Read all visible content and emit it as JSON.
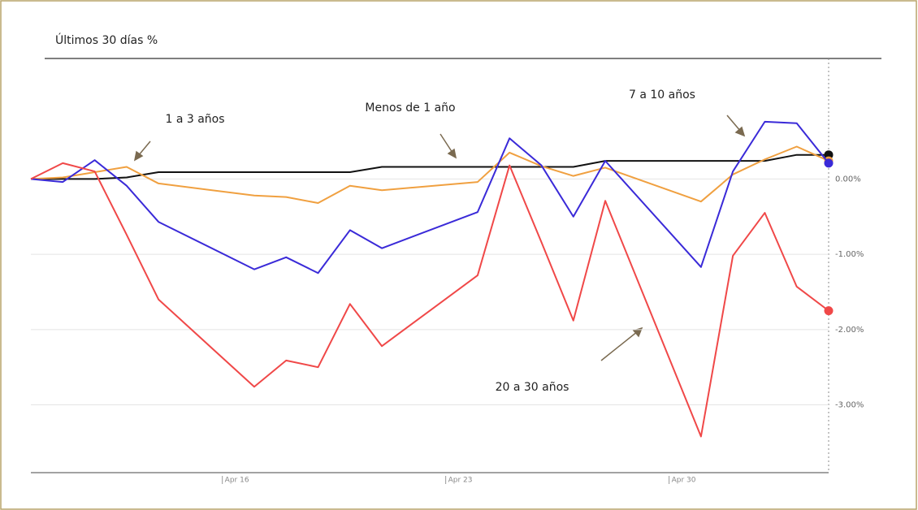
{
  "chart_data": {
    "type": "line",
    "title": "Últimos 30 días %",
    "x": [
      0,
      1,
      2,
      3,
      4,
      7,
      8,
      9,
      10,
      11,
      14,
      15,
      16,
      17,
      18,
      21,
      22,
      23,
      24,
      25
    ],
    "xlim": [
      0,
      25
    ],
    "xticks": [
      {
        "value": 6,
        "label": "Apr 16"
      },
      {
        "value": 13,
        "label": "Apr 23"
      },
      {
        "value": 20,
        "label": "Apr 30"
      }
    ],
    "ylim": [
      -3.9,
      1.6
    ],
    "yticks": [
      {
        "value": 0,
        "label": "0.00%"
      },
      {
        "value": -1,
        "label": "-1.00%"
      },
      {
        "value": -2,
        "label": "-2.00%"
      },
      {
        "value": -3,
        "label": "-3.00%"
      }
    ],
    "grid": true,
    "series": [
      {
        "name": "Menos de 1 año",
        "color": "#111111",
        "values": [
          0,
          0,
          0,
          0.02,
          0.09,
          0.09,
          0.09,
          0.09,
          0.09,
          0.16,
          0.16,
          0.16,
          0.16,
          0.16,
          0.24,
          0.24,
          0.24,
          0.24,
          0.32,
          0.32
        ]
      },
      {
        "name": "1 a 3 años",
        "color": "#f0a040",
        "values": [
          0,
          0.02,
          0.09,
          0.16,
          -0.06,
          -0.22,
          -0.24,
          -0.32,
          -0.09,
          -0.15,
          -0.04,
          0.35,
          0.17,
          0.04,
          0.15,
          -0.3,
          0.06,
          0.26,
          0.43,
          0.24
        ]
      },
      {
        "name": "7 a 10 años",
        "color": "#3a2ad8",
        "values": [
          0,
          -0.04,
          0.25,
          -0.09,
          -0.57,
          -1.2,
          -1.04,
          -1.25,
          -0.68,
          -0.92,
          -0.44,
          0.54,
          0.18,
          -0.5,
          0.24,
          -1.17,
          0.1,
          0.76,
          0.74,
          0.21
        ]
      },
      {
        "name": "20 a 30 años",
        "color": "#f04848",
        "values": [
          0,
          0.21,
          0.1,
          -0.74,
          -1.6,
          -2.76,
          -2.41,
          -2.5,
          -1.66,
          -2.22,
          -1.28,
          0.18,
          -0.84,
          -1.88,
          -0.29,
          -3.42,
          -1.02,
          -0.45,
          -1.43,
          -1.75
        ]
      }
    ]
  }
}
